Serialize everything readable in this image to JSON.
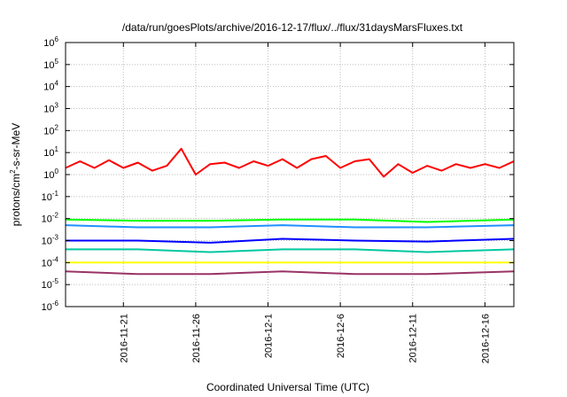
{
  "chart_data": {
    "type": "line",
    "title": "/data/run/goesPlots/archive/2016-12-17/flux/../flux/31daysMarsFluxes.txt",
    "xlabel": "Coordinated Universal Time (UTC)",
    "ylabel_base": "protons/cm",
    "ylabel_sup": "2",
    "ylabel_rest": "-s-sr-MeV",
    "y_scale": "log",
    "ylim": [
      1e-06,
      1000000.0
    ],
    "y_ticks": [
      {
        "value": 1e-06,
        "base": "10",
        "exp": "-6"
      },
      {
        "value": 1e-05,
        "base": "10",
        "exp": "-5"
      },
      {
        "value": 0.0001,
        "base": "10",
        "exp": "-4"
      },
      {
        "value": 0.001,
        "base": "10",
        "exp": "-3"
      },
      {
        "value": 0.01,
        "base": "10",
        "exp": "-2"
      },
      {
        "value": 0.1,
        "base": "10",
        "exp": "-1"
      },
      {
        "value": 1.0,
        "base": "10",
        "exp": "0"
      },
      {
        "value": 10.0,
        "base": "10",
        "exp": "1"
      },
      {
        "value": 100.0,
        "base": "10",
        "exp": "2"
      },
      {
        "value": 1000.0,
        "base": "10",
        "exp": "3"
      },
      {
        "value": 10000.0,
        "base": "10",
        "exp": "4"
      },
      {
        "value": 100000.0,
        "base": "10",
        "exp": "5"
      },
      {
        "value": 1000000.0,
        "base": "10",
        "exp": "6"
      }
    ],
    "xlim": [
      "2016-11-17",
      "2016-12-18"
    ],
    "x_ticks": [
      "2016-11-21",
      "2016-11-26",
      "2016-12-1",
      "2016-12-6",
      "2016-12-11",
      "2016-12-16"
    ],
    "grid": true,
    "series": [
      {
        "color": "#ff0000",
        "values": [
          {
            "x": "2016-11-17",
            "y": 2.0
          },
          {
            "x": "2016-11-18",
            "y": 4.0
          },
          {
            "x": "2016-11-19",
            "y": 2.0
          },
          {
            "x": "2016-11-20",
            "y": 4.5
          },
          {
            "x": "2016-11-21",
            "y": 2.0
          },
          {
            "x": "2016-11-22",
            "y": 3.5
          },
          {
            "x": "2016-11-23",
            "y": 1.5
          },
          {
            "x": "2016-11-24",
            "y": 2.5
          },
          {
            "x": "2016-11-25",
            "y": 15.0
          },
          {
            "x": "2016-11-26",
            "y": 1.0
          },
          {
            "x": "2016-11-27",
            "y": 3.0
          },
          {
            "x": "2016-11-28",
            "y": 3.5
          },
          {
            "x": "2016-11-29",
            "y": 2.0
          },
          {
            "x": "2016-11-30",
            "y": 4.0
          },
          {
            "x": "2016-12-01",
            "y": 2.5
          },
          {
            "x": "2016-12-02",
            "y": 5.0
          },
          {
            "x": "2016-12-03",
            "y": 2.0
          },
          {
            "x": "2016-12-04",
            "y": 5.0
          },
          {
            "x": "2016-12-05",
            "y": 7.0
          },
          {
            "x": "2016-12-06",
            "y": 2.0
          },
          {
            "x": "2016-12-07",
            "y": 4.0
          },
          {
            "x": "2016-12-08",
            "y": 5.0
          },
          {
            "x": "2016-12-09",
            "y": 0.8
          },
          {
            "x": "2016-12-10",
            "y": 3.0
          },
          {
            "x": "2016-12-11",
            "y": 1.2
          },
          {
            "x": "2016-12-12",
            "y": 2.5
          },
          {
            "x": "2016-12-13",
            "y": 1.5
          },
          {
            "x": "2016-12-14",
            "y": 3.0
          },
          {
            "x": "2016-12-15",
            "y": 2.0
          },
          {
            "x": "2016-12-16",
            "y": 3.0
          },
          {
            "x": "2016-12-17",
            "y": 2.0
          },
          {
            "x": "2016-12-18",
            "y": 4.0
          }
        ]
      },
      {
        "color": "#00ff00",
        "values": [
          {
            "x": "2016-11-17",
            "y": 0.009
          },
          {
            "x": "2016-11-22",
            "y": 0.008
          },
          {
            "x": "2016-11-27",
            "y": 0.008
          },
          {
            "x": "2016-12-02",
            "y": 0.009
          },
          {
            "x": "2016-12-07",
            "y": 0.009
          },
          {
            "x": "2016-12-12",
            "y": 0.007
          },
          {
            "x": "2016-12-18",
            "y": 0.009
          }
        ]
      },
      {
        "color": "#1e90ff",
        "values": [
          {
            "x": "2016-11-17",
            "y": 0.005
          },
          {
            "x": "2016-11-22",
            "y": 0.004
          },
          {
            "x": "2016-11-27",
            "y": 0.004
          },
          {
            "x": "2016-12-02",
            "y": 0.005
          },
          {
            "x": "2016-12-07",
            "y": 0.004
          },
          {
            "x": "2016-12-12",
            "y": 0.004
          },
          {
            "x": "2016-12-18",
            "y": 0.005
          }
        ]
      },
      {
        "color": "#0000ff",
        "values": [
          {
            "x": "2016-11-17",
            "y": 0.001
          },
          {
            "x": "2016-11-22",
            "y": 0.001
          },
          {
            "x": "2016-11-27",
            "y": 0.0008
          },
          {
            "x": "2016-12-02",
            "y": 0.0012
          },
          {
            "x": "2016-12-07",
            "y": 0.001
          },
          {
            "x": "2016-12-12",
            "y": 0.0009
          },
          {
            "x": "2016-12-18",
            "y": 0.0012
          }
        ]
      },
      {
        "color": "#00c8a0",
        "values": [
          {
            "x": "2016-11-17",
            "y": 0.0004
          },
          {
            "x": "2016-11-22",
            "y": 0.0004
          },
          {
            "x": "2016-11-27",
            "y": 0.0003
          },
          {
            "x": "2016-12-02",
            "y": 0.0004
          },
          {
            "x": "2016-12-07",
            "y": 0.0004
          },
          {
            "x": "2016-12-12",
            "y": 0.0003
          },
          {
            "x": "2016-12-18",
            "y": 0.0004
          }
        ]
      },
      {
        "color": "#ffff00",
        "values": [
          {
            "x": "2016-11-17",
            "y": 0.0001
          },
          {
            "x": "2016-11-22",
            "y": 0.0001
          },
          {
            "x": "2016-11-27",
            "y": 0.0001
          },
          {
            "x": "2016-12-02",
            "y": 0.0001
          },
          {
            "x": "2016-12-07",
            "y": 0.0001
          },
          {
            "x": "2016-12-12",
            "y": 0.0001
          },
          {
            "x": "2016-12-18",
            "y": 0.0001
          }
        ]
      },
      {
        "color": "#993366",
        "values": [
          {
            "x": "2016-11-17",
            "y": 4e-05
          },
          {
            "x": "2016-11-22",
            "y": 3e-05
          },
          {
            "x": "2016-11-27",
            "y": 3e-05
          },
          {
            "x": "2016-12-02",
            "y": 4e-05
          },
          {
            "x": "2016-12-07",
            "y": 3e-05
          },
          {
            "x": "2016-12-12",
            "y": 3e-05
          },
          {
            "x": "2016-12-18",
            "y": 4e-05
          }
        ]
      }
    ]
  }
}
